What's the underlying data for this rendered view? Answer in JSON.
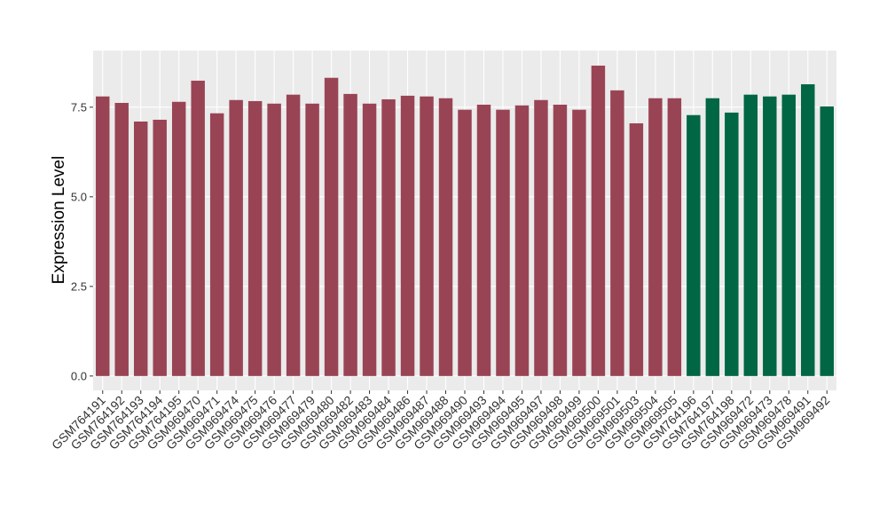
{
  "chart_data": {
    "type": "bar",
    "y_label": "Expression Level",
    "categories": [
      "GSM764191",
      "GSM764192",
      "GSM764193",
      "GSM764194",
      "GSM764195",
      "GSM969470",
      "GSM969471",
      "GSM969474",
      "GSM969475",
      "GSM969476",
      "GSM969477",
      "GSM969479",
      "GSM969480",
      "GSM969482",
      "GSM969483",
      "GSM969484",
      "GSM969486",
      "GSM969487",
      "GSM969488",
      "GSM969490",
      "GSM969493",
      "GSM969494",
      "GSM969495",
      "GSM969497",
      "GSM969498",
      "GSM969499",
      "GSM969500",
      "GSM969501",
      "GSM969503",
      "GSM969504",
      "GSM969505",
      "GSM764196",
      "GSM764197",
      "GSM764198",
      "GSM969472",
      "GSM969473",
      "GSM969478",
      "GSM969491",
      "GSM969492"
    ],
    "values": [
      7.8,
      7.62,
      7.1,
      7.15,
      7.65,
      8.24,
      7.33,
      7.7,
      7.67,
      7.6,
      7.85,
      7.6,
      8.32,
      7.87,
      7.6,
      7.72,
      7.82,
      7.8,
      7.75,
      7.43,
      7.57,
      7.43,
      7.55,
      7.7,
      7.57,
      7.43,
      8.66,
      7.97,
      7.05,
      7.75,
      7.75,
      7.28,
      7.75,
      7.35,
      7.85,
      7.8,
      7.85,
      8.14,
      7.52
    ],
    "colors": [
      "#994455",
      "#994455",
      "#994455",
      "#994455",
      "#994455",
      "#994455",
      "#994455",
      "#994455",
      "#994455",
      "#994455",
      "#994455",
      "#994455",
      "#994455",
      "#994455",
      "#994455",
      "#994455",
      "#994455",
      "#994455",
      "#994455",
      "#994455",
      "#994455",
      "#994455",
      "#994455",
      "#994455",
      "#994455",
      "#994455",
      "#994455",
      "#994455",
      "#994455",
      "#994455",
      "#994455",
      "#006644",
      "#006644",
      "#006644",
      "#006644",
      "#006644",
      "#006644",
      "#006644",
      "#006644"
    ],
    "ylim": [
      -0.4,
      9.08
    ],
    "yticks": [
      {
        "value": 0,
        "label": "0.0"
      },
      2.5,
      {
        "value": 5,
        "label": "5.0"
      },
      7.5
    ],
    "grid": true
  }
}
